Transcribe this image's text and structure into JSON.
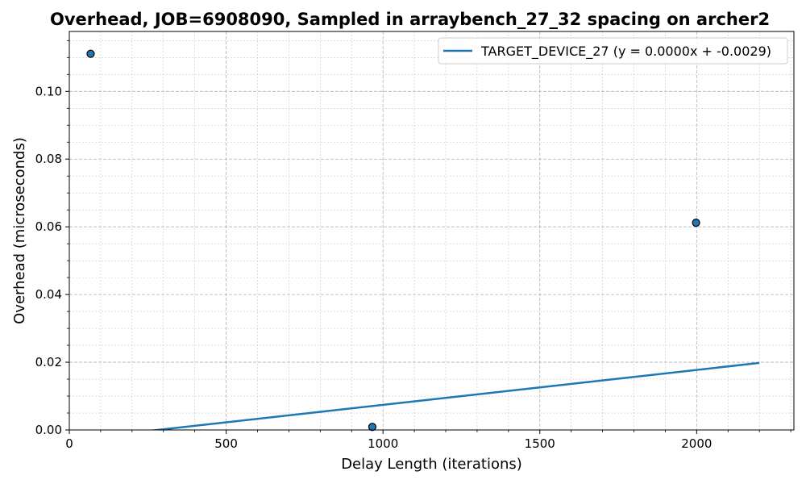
{
  "chart_data": {
    "type": "scatter",
    "title": "Overhead, JOB=6908090, Sampled in arraybench_27_32 spacing on archer2",
    "xlabel": "Delay Length (iterations)",
    "ylabel": "Overhead (microseconds)",
    "xlim": [
      0,
      2310
    ],
    "ylim": [
      0,
      0.1177
    ],
    "x_ticks": [
      0,
      500,
      1000,
      1500,
      2000
    ],
    "x_tick_labels": [
      "0",
      "500",
      "1000",
      "1500",
      "2000"
    ],
    "y_ticks": [
      0.0,
      0.02,
      0.04,
      0.06,
      0.08,
      0.1
    ],
    "y_tick_labels": [
      "0.00",
      "0.02",
      "0.04",
      "0.06",
      "0.08",
      "0.10"
    ],
    "grid": true,
    "legend_position": "top-right",
    "scatter_points": [
      {
        "x": 68,
        "y": 0.1111
      },
      {
        "x": 966,
        "y": 0.0009
      },
      {
        "x": 1998,
        "y": 0.0612
      }
    ],
    "fit_line": {
      "name": "TARGET_DEVICE_27 (y = 0.0000x + -0.0029)",
      "x": [
        0,
        2200
      ],
      "y": [
        -0.0029,
        0.0198
      ],
      "color": "#1f77b4"
    },
    "point_color": "#1f77b4"
  }
}
